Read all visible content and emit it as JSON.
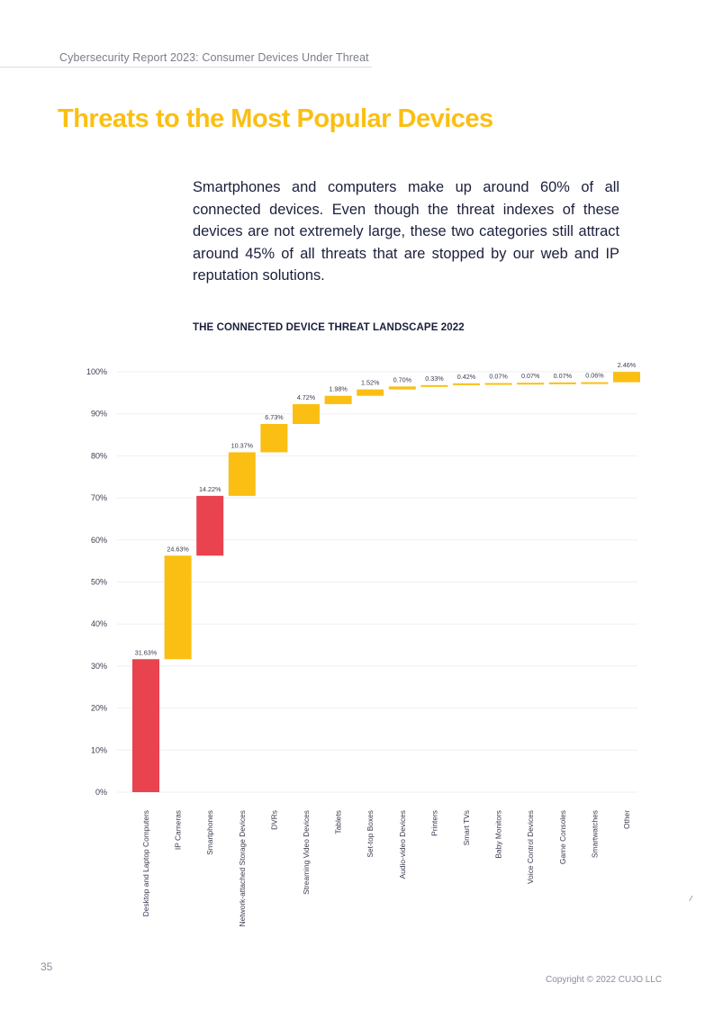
{
  "header": {
    "running_title": "Cybersecurity Report 2023: Consumer Devices Under Threat"
  },
  "page_title": "Threats to the Most Popular Devices",
  "intro_text": "Smartphones and computers make up around 60% of all connected devices. Even though the threat indexes of these devices are not extremely large, these two categories still attract around 45% of all threats that are stopped by our web and IP reputation solutions.",
  "footer": {
    "page_number": "35",
    "copyright": "Copyright © 2022 CUJO LLC",
    "stray_mark": "⁄"
  },
  "colors": {
    "highlight": "#e8434f",
    "default": "#fbbf13",
    "title": "#fbbf13",
    "text": "#1b1f3b"
  },
  "chart_data": {
    "type": "waterfall",
    "title": "THE CONNECTED DEVICE THREAT LANDSCAPE 2022",
    "xlabel": "",
    "ylabel": "",
    "ylim": [
      0,
      100
    ],
    "y_ticks": [
      "0%",
      "10%",
      "20%",
      "30%",
      "40%",
      "50%",
      "60%",
      "70%",
      "80%",
      "90%",
      "100%"
    ],
    "grid": true,
    "legend": "none",
    "categories": [
      "Desktop and Laptop Computers",
      "IP Cameras",
      "Smartphones",
      "Network-attached Storage Devices",
      "DVRs",
      "Streaming Video Devices",
      "Tablets",
      "Set-top Boxes",
      "Audio-video Devices",
      "Printers",
      "Smart TVs",
      "Baby Monitors",
      "Voice Control Devices",
      "Game Consoles",
      "Smartwatches",
      "Other"
    ],
    "values": [
      31.63,
      24.63,
      14.22,
      10.37,
      6.73,
      4.72,
      1.98,
      1.52,
      0.7,
      0.33,
      0.42,
      0.07,
      0.07,
      0.07,
      0.06,
      2.46
    ],
    "labels": [
      "31.63%",
      "24.63%",
      "14.22%",
      "10.37%",
      "6.73%",
      "4.72%",
      "1.98%",
      "1.52%",
      "0.70%",
      "0.33%",
      "0.42%",
      "0.07%",
      "0.07%",
      "0.07%",
      "0.06%",
      "2.46%"
    ],
    "highlighted": [
      "Desktop and Laptop Computers",
      "Smartphones"
    ]
  }
}
